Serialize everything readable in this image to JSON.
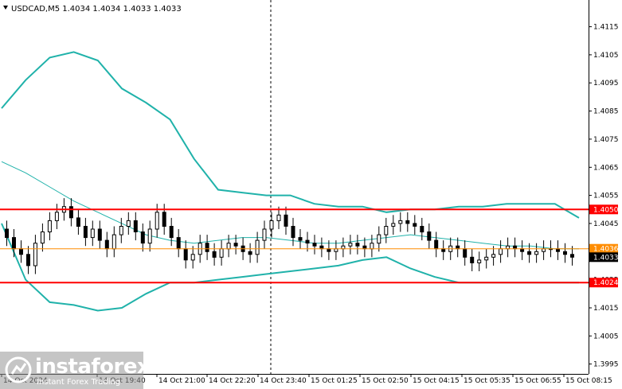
{
  "header": {
    "symbol_line": "USDCAD,M5  1.4034 1.4034 1.4033 1.4033"
  },
  "colors": {
    "bollinger": "#20b2aa",
    "level_line": "#ff0000",
    "price_line": "#ff8c00",
    "candle": "#000000"
  },
  "chart_data": {
    "type": "candlestick",
    "y_ticks": [
      "1.4115",
      "1.4105",
      "1.4095",
      "1.4085",
      "1.4075",
      "1.4065",
      "1.4055",
      "1.4045",
      "1.4035",
      "1.4025",
      "1.4015",
      "1.4005",
      "1.3995"
    ],
    "y_tick_values": [
      1.4115,
      1.4105,
      1.4095,
      1.4085,
      1.4075,
      1.4065,
      1.4055,
      1.4045,
      1.4035,
      1.4025,
      1.4015,
      1.4005,
      1.3995
    ],
    "ylim": [
      1.39915,
      1.41245
    ],
    "x_ticks": [
      "14 Oct 2024",
      "14 Oct 19:40",
      "14 Oct 21:00",
      "14 Oct 22:20",
      "14 Oct 23:40",
      "15 Oct 01:25",
      "15 Oct 02:50",
      "15 Oct 04:15",
      "15 Oct 05:35",
      "15 Oct 06:55",
      "15 Oct 08:15"
    ],
    "levels": [
      {
        "label": "1.4050",
        "value": 1.405,
        "kind": "resistance"
      },
      {
        "label": "1.4024",
        "value": 1.4024,
        "kind": "support"
      }
    ],
    "current_price": {
      "label": "1.4033",
      "value": 1.4033
    },
    "middle_band_value": {
      "label": "1.4036",
      "value": 1.4036
    },
    "upper_band": [
      1.4086,
      1.4096,
      1.4104,
      1.4106,
      1.4103,
      1.4093,
      1.4088,
      1.4082,
      1.4068,
      1.4057,
      1.4056,
      1.4055,
      1.4055,
      1.4052,
      1.4051,
      1.4051,
      1.4049,
      1.405,
      1.405,
      1.4051,
      1.4051,
      1.4052,
      1.4052,
      1.4052,
      1.4047
    ],
    "middle_band": [
      1.4067,
      1.4063,
      1.4058,
      1.4053,
      1.4049,
      1.4045,
      1.4041,
      1.4039,
      1.4038,
      1.4039,
      1.404,
      1.404,
      1.4039,
      1.4038,
      1.4038,
      1.4039,
      1.404,
      1.4041,
      1.404,
      1.4039,
      1.4038,
      1.4037,
      1.4037,
      1.4036,
      1.4036
    ],
    "lower_band": [
      1.4045,
      1.4025,
      1.4017,
      1.4016,
      1.4014,
      1.4015,
      1.402,
      1.4024,
      1.4024,
      1.4025,
      1.4026,
      1.4027,
      1.4028,
      1.4029,
      1.403,
      1.4032,
      1.4033,
      1.4029,
      1.4026,
      1.4024,
      1.4024,
      1.4024,
      1.4024,
      1.4024,
      1.4024
    ],
    "closes": [
      1.404,
      1.4036,
      1.4034,
      1.403,
      1.4038,
      1.4042,
      1.4046,
      1.4049,
      1.4051,
      1.4047,
      1.4044,
      1.404,
      1.4043,
      1.4039,
      1.4036,
      1.4041,
      1.4044,
      1.4046,
      1.4042,
      1.4038,
      1.4043,
      1.4049,
      1.4044,
      1.404,
      1.4036,
      1.4032,
      1.4034,
      1.4038,
      1.4035,
      1.4033,
      1.4036,
      1.4038,
      1.4037,
      1.4035,
      1.4034,
      1.4039,
      1.4043,
      1.4046,
      1.4048,
      1.4044,
      1.404,
      1.4039,
      1.4038,
      1.4037,
      1.4036,
      1.4035,
      1.4036,
      1.4037,
      1.4038,
      1.4037,
      1.4036,
      1.4038,
      1.4041,
      1.4044,
      1.4045,
      1.4046,
      1.4045,
      1.4044,
      1.4042,
      1.4039,
      1.4036,
      1.4035,
      1.4037,
      1.4036,
      1.4033,
      1.4031,
      1.4032,
      1.4033,
      1.4034,
      1.4036,
      1.4037,
      1.4036,
      1.4035,
      1.4034,
      1.4035,
      1.4036,
      1.4036,
      1.4035,
      1.4034,
      1.4033
    ]
  },
  "logo": {
    "name": "instaforex",
    "tagline": "Instant Forex Trading"
  }
}
